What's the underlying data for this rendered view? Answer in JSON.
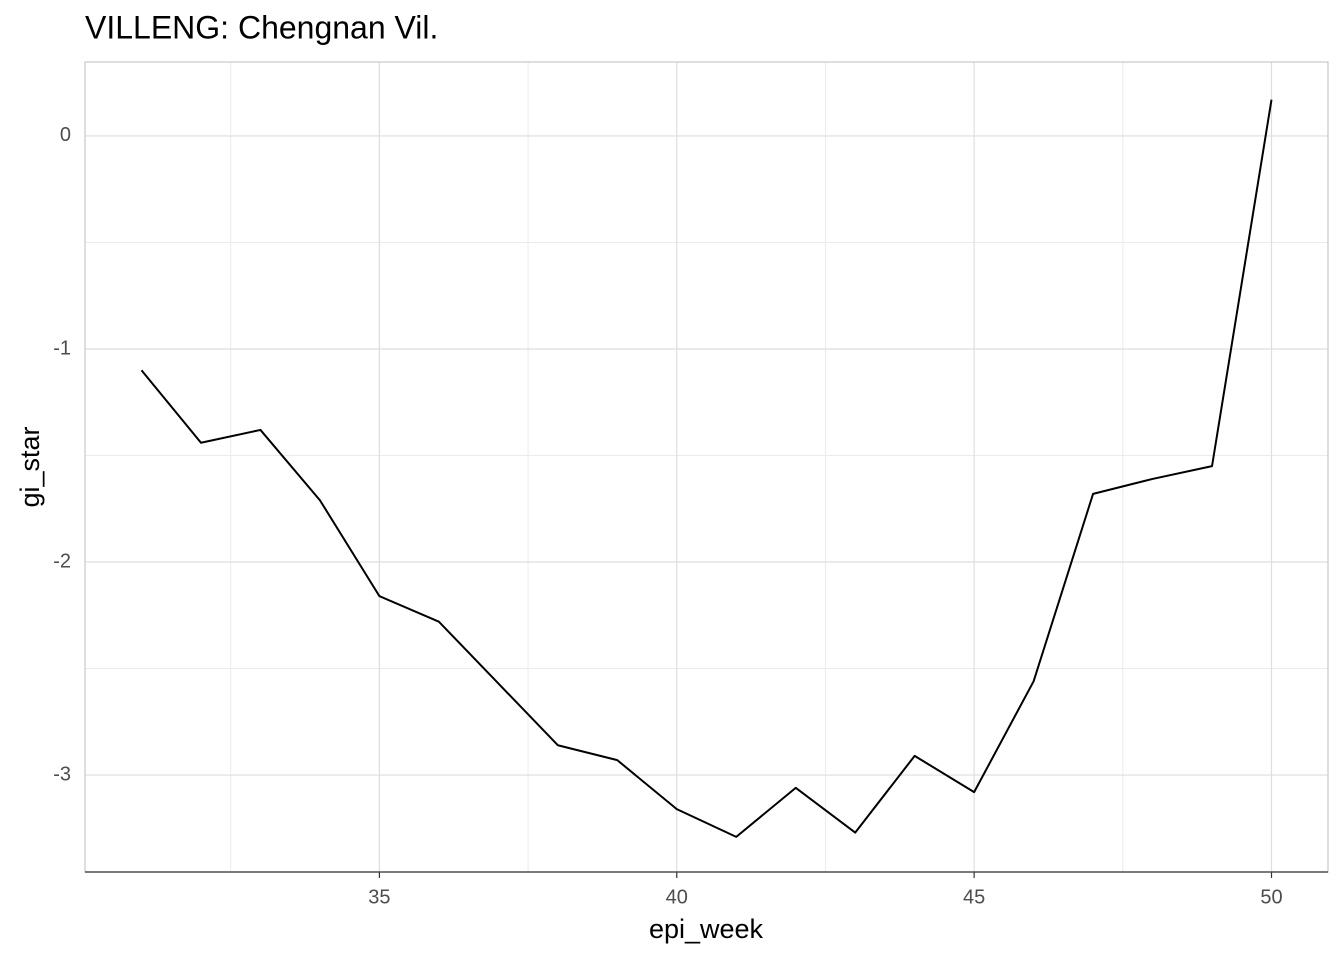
{
  "chart_data": {
    "type": "line",
    "title": "VILLENG: Chengnan Vil.",
    "x_label": "epi_week",
    "y_label": "gi_star",
    "x": [
      31,
      32,
      33,
      34,
      35,
      36,
      37,
      38,
      39,
      40,
      41,
      42,
      43,
      44,
      45,
      46,
      47,
      48,
      49,
      50
    ],
    "series": [
      {
        "name": "gi_star",
        "color": "#000000",
        "values": [
          -1.1,
          -1.44,
          -1.38,
          -1.71,
          -2.16,
          -2.28,
          -2.57,
          -2.86,
          -2.93,
          -3.16,
          -3.29,
          -3.06,
          -3.27,
          -2.91,
          -3.08,
          -2.56,
          -1.68,
          -1.61,
          -1.55,
          0.17
        ]
      }
    ],
    "xlim": [
      30.05,
      50.95
    ],
    "xticks": [
      35,
      40,
      45,
      50
    ],
    "ylim": [
      -3.455,
      0.347
    ],
    "yticks": [
      -3,
      -2,
      -1,
      0
    ],
    "grid": true
  }
}
